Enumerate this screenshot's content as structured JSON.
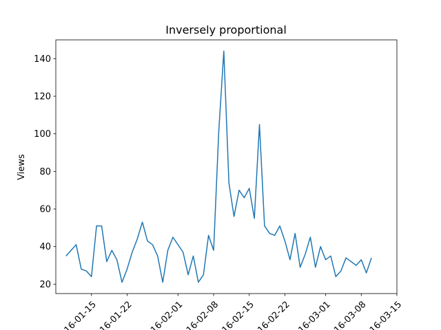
{
  "chart_data": {
    "type": "line",
    "title": "Inversely proportional",
    "xlabel": "",
    "ylabel": "Views",
    "grid": false,
    "legend": "none",
    "x_start_date": "2016-01-10",
    "x_range": [
      "2016-01-08",
      "2016-03-15"
    ],
    "ylim": [
      15,
      150
    ],
    "yticks": [
      20,
      40,
      60,
      80,
      100,
      120,
      140
    ],
    "xticks": [
      {
        "date": "2016-01-15",
        "label": "2016-01-15"
      },
      {
        "date": "2016-01-22",
        "label": "2016-01-22"
      },
      {
        "date": "2016-02-01",
        "label": "2016-02-01"
      },
      {
        "date": "2016-02-08",
        "label": "2016-02-08"
      },
      {
        "date": "2016-02-15",
        "label": "2016-02-15"
      },
      {
        "date": "2016-02-22",
        "label": "2016-02-22"
      },
      {
        "date": "2016-03-01",
        "label": "2016-03-01"
      },
      {
        "date": "2016-03-08",
        "label": "2016-03-08"
      },
      {
        "date": "2016-03-15",
        "label": "2016-03-15"
      }
    ],
    "series": [
      {
        "name": "Views",
        "color": "#1f77b4",
        "values": [
          35,
          38,
          41,
          28,
          27,
          24,
          51,
          51,
          32,
          38,
          33,
          21,
          28,
          37,
          44,
          53,
          43,
          41,
          35,
          21,
          38,
          45,
          41,
          37,
          25,
          35,
          21,
          25,
          46,
          38,
          101,
          144,
          74,
          56,
          70,
          66,
          71,
          55,
          105,
          51,
          47,
          46,
          51,
          43,
          33,
          47,
          29,
          36,
          45,
          29,
          40,
          33,
          35,
          24,
          27,
          34,
          32,
          30,
          33,
          26,
          34
        ]
      }
    ]
  }
}
